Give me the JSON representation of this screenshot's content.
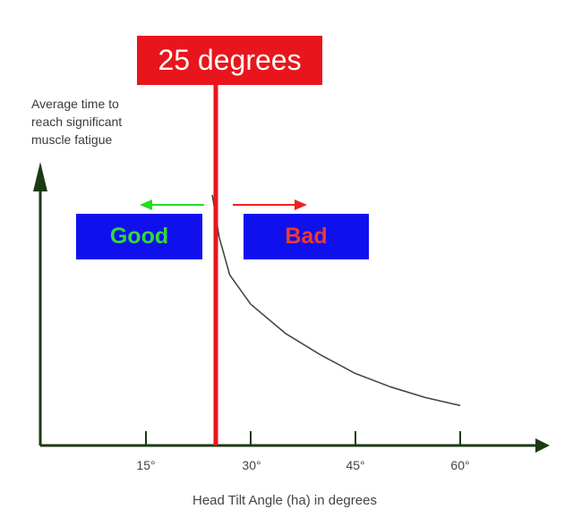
{
  "chart_data": {
    "type": "line",
    "title": "",
    "xlabel": "Head Tilt Angle (ha) in degrees",
    "ylabel_lines": [
      "Average time to",
      "reach significant",
      "muscle fatigue"
    ],
    "x_ticks": [
      15,
      30,
      45,
      60
    ],
    "x_tick_labels": [
      "15°",
      "30°",
      "45°",
      "60°"
    ],
    "xlim": [
      0,
      75
    ],
    "y_tick_labels": [],
    "marker": {
      "value": 25,
      "label": "25 degrees"
    },
    "zones": {
      "good_label": "Good",
      "bad_label": "Bad"
    },
    "series": [
      {
        "points": [
          [
            24.5,
            0.94
          ],
          [
            25.5,
            0.78
          ],
          [
            27,
            0.64
          ],
          [
            30,
            0.53
          ],
          [
            35,
            0.42
          ],
          [
            40,
            0.34
          ],
          [
            45,
            0.27
          ],
          [
            50,
            0.22
          ],
          [
            55,
            0.18
          ],
          [
            60,
            0.15
          ]
        ]
      }
    ]
  },
  "colors": {
    "axis": "#1c3a14",
    "curve": "#404a3a",
    "marker": "#e8161c",
    "zone_box": "#1010ee",
    "good_text": "#34d83a",
    "bad_text": "#f03a2a",
    "good_arrow": "#22dd22",
    "bad_arrow": "#ee2222"
  }
}
